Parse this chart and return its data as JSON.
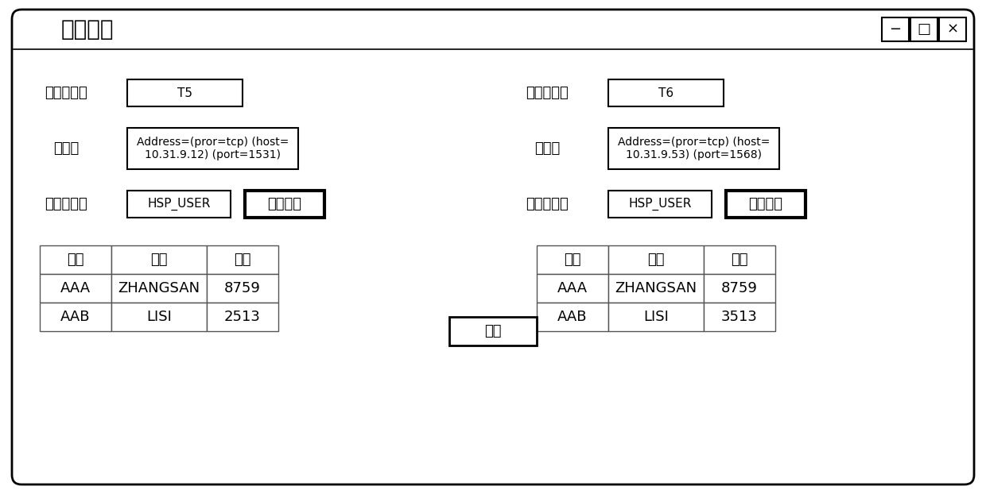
{
  "title": "对比页面",
  "bg_color": "#ffffff",
  "label1_db": "第一数据库",
  "label2_db": "第二数据库",
  "label1_conn": "连接串",
  "label2_conn": "连接串",
  "label1_file": "第一文件名",
  "label2_file": "第二文件名",
  "db1_name": "T5",
  "db2_name": "T6",
  "conn1_line1": "Address=(pror=tcp) (host=",
  "conn1_line2": "10.31.9.12) (port=1531)",
  "conn2_line1": "Address=(pror=tcp) (host=",
  "conn2_line2": "10.31.9.53) (port=1568)",
  "file1": "HSP_USER",
  "file2": "HSP_USER",
  "btn_view": "查看数据",
  "btn_start": "开始",
  "table_headers": [
    "账号",
    "姓名",
    "电话"
  ],
  "table1_data": [
    [
      "AAA",
      "ZHANGSAN",
      "8759"
    ],
    [
      "AAB",
      "LISI",
      "2513"
    ]
  ],
  "table2_data": [
    [
      "AAA",
      "ZHANGSAN",
      "8759"
    ],
    [
      "AAB",
      "LISI",
      "3513"
    ]
  ],
  "window_btns": [
    "−",
    "□",
    "×"
  ],
  "font_size_title": 20,
  "font_size_label": 13,
  "font_size_content": 11,
  "font_size_table": 13,
  "font_size_conn": 10
}
